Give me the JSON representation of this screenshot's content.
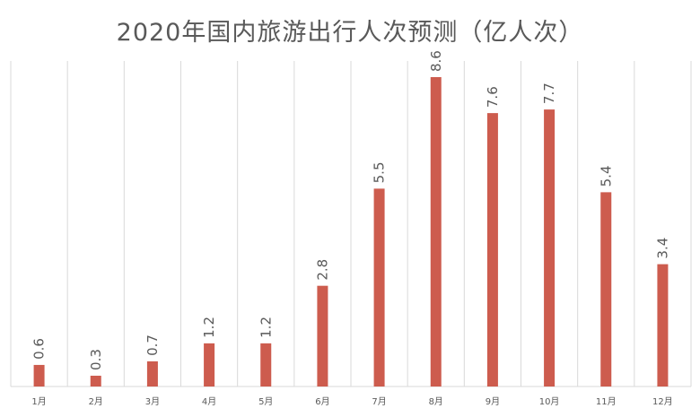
{
  "chart_data": {
    "type": "bar",
    "title": "2020年国内旅游出行人次预测（亿人次）",
    "xlabel": "",
    "ylabel": "",
    "categories": [
      "1月",
      "2月",
      "3月",
      "4月",
      "5月",
      "6月",
      "7月",
      "8月",
      "9月",
      "10月",
      "11月",
      "12月"
    ],
    "values": [
      0.6,
      0.3,
      0.7,
      1.2,
      1.2,
      2.8,
      5.5,
      8.6,
      7.6,
      7.7,
      5.4,
      3.4
    ],
    "value_labels": [
      "0.6",
      "0.3",
      "0.7",
      "1.2",
      "1.2",
      "2.8",
      "5.5",
      "8.6",
      "7.6",
      "7.7",
      "5.4",
      "3.4"
    ],
    "ylim": [
      0,
      8.6
    ],
    "grid": "vertical",
    "legend": "none",
    "bar_color": "#CD5C4E",
    "grid_color": "#D9D9D9",
    "text_color": "#595959"
  }
}
